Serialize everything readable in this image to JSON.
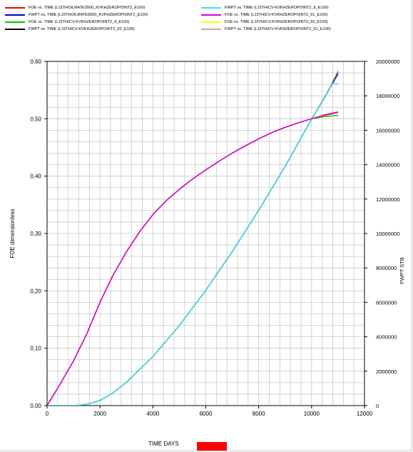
{
  "chart_data": {
    "type": "line",
    "xlabel": "TIME   DAYS",
    "ylabel_left": "FOE   dimensionless",
    "ylabel_right": "FWPT   STB",
    "x_ticks": [
      "0",
      "2000",
      "4000",
      "6000",
      "8000",
      "10000",
      "12000"
    ],
    "y_left_ticks": [
      "0,00",
      "0,10",
      "0,20",
      "0,30",
      "0,40",
      "0,50",
      "0,60"
    ],
    "y_right_ticks": [
      "0",
      "2000000",
      "4000000",
      "6000000",
      "8000000",
      "10000000",
      "12000000",
      "14000000",
      "16000000",
      "18000000",
      "20000000"
    ],
    "xlim": [
      0,
      12000
    ],
    "ylim_left": [
      0,
      0.6
    ],
    "ylim_right": [
      0,
      20000000
    ],
    "grid": true,
    "legend_position": "top",
    "series": [
      {
        "name": "FOE vs. TIME (L15THOILRATE3000_KVKHZEROPOINT2_E100)",
        "color": "#ff0000",
        "axis": "left",
        "x": [
          0,
          500,
          1000,
          1500,
          2000,
          2500,
          3000,
          3500,
          4000,
          4500,
          5000,
          5500,
          6000,
          6500,
          7000,
          7500,
          8000,
          8500,
          9000,
          9500,
          10000,
          10500,
          11000
        ],
        "y": [
          0,
          0.038,
          0.078,
          0.125,
          0.18,
          0.228,
          0.268,
          0.303,
          0.333,
          0.357,
          0.377,
          0.395,
          0.411,
          0.426,
          0.44,
          0.453,
          0.465,
          0.476,
          0.485,
          0.493,
          0.5,
          0.507,
          0.512
        ]
      },
      {
        "name": "FWPT vs. TIME (L15THOILRATE3000_KVKHZEROPOINT2_E100)",
        "color": "#0000cc",
        "axis": "right",
        "x": [
          0,
          1000,
          1500,
          2000,
          2500,
          3000,
          4000,
          5000,
          6000,
          7000,
          8000,
          9000,
          10000,
          10500,
          11000
        ],
        "y": [
          0,
          0,
          70000,
          300000,
          750000,
          1350000,
          2850000,
          4650000,
          6700000,
          8950000,
          11350000,
          13900000,
          16650000,
          17900000,
          19300000
        ]
      },
      {
        "name": "FOE vs. TIME (L15THICV-KVKHZEROPOINT2_9_E100)",
        "color": "#00cc00",
        "axis": "left",
        "x": [
          0,
          500,
          1000,
          1500,
          2000,
          2500,
          3000,
          3500,
          4000,
          4500,
          5000,
          5500,
          6000,
          6500,
          7000,
          7500,
          8000,
          8500,
          9000,
          9500,
          10000,
          10500,
          11000
        ],
        "y": [
          0,
          0.038,
          0.078,
          0.125,
          0.18,
          0.228,
          0.268,
          0.303,
          0.333,
          0.357,
          0.377,
          0.395,
          0.411,
          0.426,
          0.44,
          0.453,
          0.465,
          0.476,
          0.485,
          0.493,
          0.5,
          0.504,
          0.506
        ]
      },
      {
        "name": "FWPT vs. TIME (L15THICV-KVKHZEROPOINT2_92_E100)",
        "color": "#000000",
        "axis": "right",
        "x": [
          0,
          1000,
          1500,
          2000,
          2500,
          3000,
          4000,
          5000,
          6000,
          7000,
          8000,
          9000,
          10000,
          10500,
          11000
        ],
        "y": [
          0,
          0,
          70000,
          300000,
          750000,
          1350000,
          2850000,
          4650000,
          6700000,
          8950000,
          11350000,
          13900000,
          16650000,
          17950000,
          19400000
        ]
      },
      {
        "name": "FWPT vs. TIME (L15THICV-KVKHZEROPOINT2_9_E100)",
        "color": "#44e0e0",
        "axis": "right",
        "x": [
          0,
          1000,
          1500,
          2000,
          2500,
          3000,
          4000,
          5000,
          6000,
          7000,
          8000,
          9000,
          10000,
          10500,
          10800,
          11000
        ],
        "y": [
          0,
          0,
          70000,
          300000,
          750000,
          1350000,
          2850000,
          4650000,
          6700000,
          8950000,
          11350000,
          13900000,
          16650000,
          17900000,
          18700000,
          18700000
        ]
      },
      {
        "name": "FOE vs. TIME (L15THICV-KVKHZEROPOINT2_91_E100)",
        "color": "#dd00dd",
        "axis": "left",
        "x": [
          0,
          500,
          1000,
          1500,
          2000,
          2500,
          3000,
          3500,
          4000,
          4500,
          5000,
          5500,
          6000,
          6500,
          7000,
          7500,
          8000,
          8500,
          9000,
          9500,
          10000,
          10500,
          11000
        ],
        "y": [
          0,
          0.038,
          0.078,
          0.125,
          0.18,
          0.228,
          0.268,
          0.303,
          0.333,
          0.357,
          0.377,
          0.395,
          0.411,
          0.426,
          0.44,
          0.453,
          0.465,
          0.476,
          0.485,
          0.493,
          0.5,
          0.506,
          0.511
        ]
      },
      {
        "name": "FOE vs. TIME (L15THICV-KVKHZEROPOINT2_92_E100)",
        "color": "#ffff00",
        "axis": "left",
        "x": [
          0,
          500,
          1000,
          1500,
          2000,
          2500,
          3000,
          3500,
          4000,
          4500,
          5000,
          5500,
          6000,
          6500,
          7000,
          7500,
          8000,
          8500,
          9000,
          9500,
          10000,
          10500,
          11000
        ],
        "y": [
          0,
          0.038,
          0.078,
          0.125,
          0.18,
          0.228,
          0.268,
          0.303,
          0.333,
          0.357,
          0.377,
          0.395,
          0.411,
          0.426,
          0.44,
          0.453,
          0.465,
          0.476,
          0.485,
          0.493,
          0.5,
          0.506,
          0.511
        ]
      },
      {
        "name": "FWPT vs. TIME (L15THICV-KVKHZEROPOINT2_91_E100)",
        "color": "#b0b0b0",
        "axis": "right",
        "x": [
          0,
          1000,
          1500,
          2000,
          2500,
          3000,
          4000,
          5000,
          6000,
          7000,
          8000,
          9000,
          10000,
          10500,
          11000
        ],
        "y": [
          0,
          0,
          70000,
          300000,
          750000,
          1350000,
          2850000,
          4650000,
          6700000,
          8950000,
          11350000,
          13900000,
          16650000,
          17950000,
          19450000
        ]
      }
    ],
    "draw_order": [
      1,
      3,
      7,
      4,
      0,
      6,
      2,
      5
    ]
  },
  "legend_columns": [
    [
      0,
      1,
      2,
      3
    ],
    [
      4,
      5,
      6,
      7
    ]
  ],
  "colors": {
    "marker": "#ff0000",
    "grid": "#c8c8c8",
    "axis": "#000000"
  }
}
